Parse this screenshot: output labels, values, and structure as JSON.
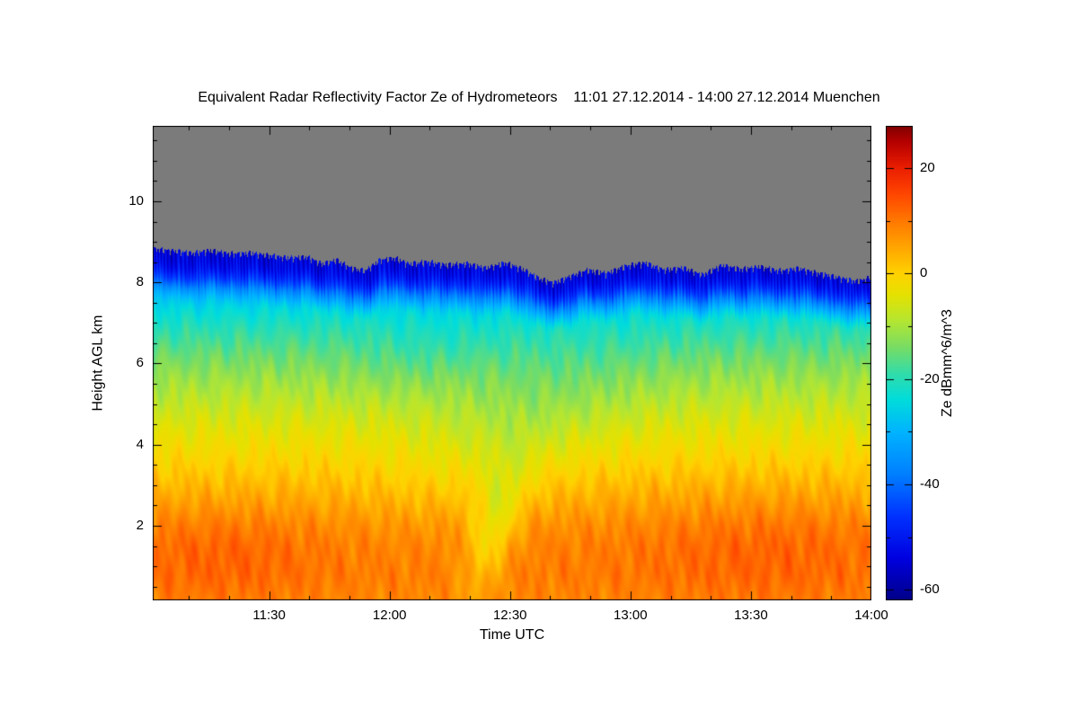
{
  "chart_data": {
    "type": "heatmap",
    "title": "Equivalent Radar Reflectivity Factor Ze of Hydrometeors    11:01 27.12.2014 - 14:00 27.12.2014 Muenchen",
    "xlabel": "Time UTC",
    "ylabel": "Height AGL km",
    "colorbar_label": "Ze dBmm^6/m^3",
    "xlim": [
      11.0167,
      14.0
    ],
    "ylim": [
      0.16,
      11.86
    ],
    "zlim": [
      -62,
      28
    ],
    "x_ticks": [
      {
        "value": 11.5,
        "label": "11:30"
      },
      {
        "value": 12.0,
        "label": "12:00"
      },
      {
        "value": 12.5,
        "label": "12:30"
      },
      {
        "value": 13.0,
        "label": "13:00"
      },
      {
        "value": 13.5,
        "label": "13:30"
      },
      {
        "value": 14.0,
        "label": "14:00"
      }
    ],
    "x_minor_step": 0.1666667,
    "y_ticks": [
      {
        "value": 2,
        "label": "2"
      },
      {
        "value": 4,
        "label": "4"
      },
      {
        "value": 6,
        "label": "6"
      },
      {
        "value": 8,
        "label": "8"
      },
      {
        "value": 10,
        "label": "10"
      }
    ],
    "y_minor_step": 0.5,
    "colorbar_ticks": [
      {
        "value": -60,
        "label": "-60"
      },
      {
        "value": -40,
        "label": "-40"
      },
      {
        "value": -20,
        "label": "-20"
      },
      {
        "value": 0,
        "label": "0"
      },
      {
        "value": 20,
        "label": "20"
      }
    ],
    "colorbar_minor_step": 10,
    "colors": {
      "background": "#ffffff",
      "nodata_gray": "#7b7b7b",
      "axis": "#000000"
    },
    "colormap": [
      [
        -62,
        "#000089"
      ],
      [
        -54,
        "#0000e0"
      ],
      [
        -46,
        "#0032ff"
      ],
      [
        -38,
        "#0080ff"
      ],
      [
        -30,
        "#00b4ff"
      ],
      [
        -24,
        "#00dcdc"
      ],
      [
        -19,
        "#32dcaa"
      ],
      [
        -14,
        "#78dc64"
      ],
      [
        -9,
        "#b4e632"
      ],
      [
        -4,
        "#e6e100"
      ],
      [
        0,
        "#ffd200"
      ],
      [
        5,
        "#ffa500"
      ],
      [
        10,
        "#ff7800"
      ],
      [
        15,
        "#ff4600"
      ],
      [
        20,
        "#eb1e00"
      ],
      [
        25,
        "#b40000"
      ],
      [
        28,
        "#800000"
      ]
    ],
    "profile_ze_dB_by_height_km": [
      [
        0.16,
        8.5
      ],
      [
        0.8,
        9.5
      ],
      [
        1.5,
        9.0
      ],
      [
        2.0,
        7.5
      ],
      [
        2.6,
        4.5
      ],
      [
        3.2,
        1.5
      ],
      [
        4.0,
        -2.5
      ],
      [
        4.8,
        -6.5
      ],
      [
        5.6,
        -11.0
      ],
      [
        6.2,
        -15.0
      ],
      [
        6.8,
        -19.5
      ],
      [
        7.3,
        -24.0
      ],
      [
        7.8,
        -30.0
      ],
      [
        8.2,
        -38.0
      ],
      [
        8.6,
        -48.0
      ],
      [
        9.0,
        -55.0
      ]
    ],
    "cloud_top_km_by_time_utc": [
      [
        11.02,
        8.82
      ],
      [
        11.1,
        8.78
      ],
      [
        11.18,
        8.72
      ],
      [
        11.26,
        8.78
      ],
      [
        11.34,
        8.7
      ],
      [
        11.42,
        8.72
      ],
      [
        11.5,
        8.66
      ],
      [
        11.58,
        8.6
      ],
      [
        11.66,
        8.62
      ],
      [
        11.72,
        8.45
      ],
      [
        11.78,
        8.55
      ],
      [
        11.84,
        8.35
      ],
      [
        11.9,
        8.28
      ],
      [
        11.96,
        8.55
      ],
      [
        12.02,
        8.6
      ],
      [
        12.08,
        8.45
      ],
      [
        12.16,
        8.5
      ],
      [
        12.24,
        8.42
      ],
      [
        12.32,
        8.46
      ],
      [
        12.4,
        8.35
      ],
      [
        12.48,
        8.48
      ],
      [
        12.56,
        8.3
      ],
      [
        12.62,
        8.1
      ],
      [
        12.68,
        7.98
      ],
      [
        12.74,
        8.12
      ],
      [
        12.82,
        8.3
      ],
      [
        12.9,
        8.22
      ],
      [
        12.98,
        8.4
      ],
      [
        13.06,
        8.48
      ],
      [
        13.14,
        8.3
      ],
      [
        13.22,
        8.36
      ],
      [
        13.3,
        8.18
      ],
      [
        13.38,
        8.42
      ],
      [
        13.46,
        8.32
      ],
      [
        13.54,
        8.38
      ],
      [
        13.62,
        8.28
      ],
      [
        13.7,
        8.34
      ],
      [
        13.78,
        8.22
      ],
      [
        13.86,
        8.12
      ],
      [
        13.94,
        8.02
      ],
      [
        14.0,
        8.12
      ]
    ],
    "anomalies": [
      {
        "t": 12.43,
        "h": 1.9,
        "st": 0.07,
        "sh": 1.1,
        "amp": -10,
        "slant": 0.04
      },
      {
        "t": 12.55,
        "h": 4.6,
        "st": 0.28,
        "sh": 1.6,
        "amp": -4,
        "slant": 0.12
      },
      {
        "t": 11.3,
        "h": 1.3,
        "st": 0.28,
        "sh": 0.9,
        "amp": 3,
        "slant": 0
      },
      {
        "t": 13.55,
        "h": 1.5,
        "st": 0.35,
        "sh": 1.1,
        "amp": 3,
        "slant": 0
      },
      {
        "t": 12.15,
        "h": 6.3,
        "st": 0.2,
        "sh": 0.8,
        "amp": -2.5,
        "slant": 0.1
      }
    ],
    "cloud_top_blend_depth_km": 1.3,
    "cloud_top_ze_dB": -54
  }
}
